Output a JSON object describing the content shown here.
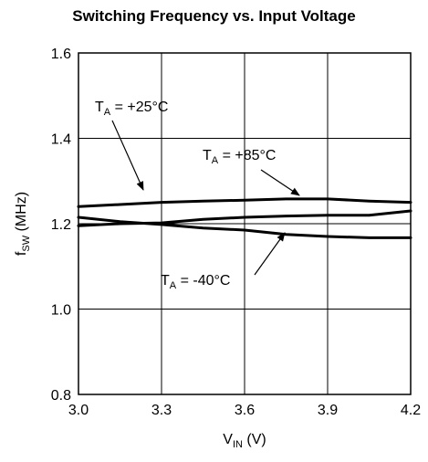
{
  "chart_data": {
    "type": "line",
    "title": "Switching Frequency vs. Input Voltage",
    "xlabel": {
      "main": "V",
      "sub": "IN",
      "unit": " (V)"
    },
    "ylabel": {
      "main": "f",
      "sub": "SW",
      "unit": " (MHz)"
    },
    "xlim": [
      3.0,
      4.2
    ],
    "ylim": [
      0.8,
      1.6
    ],
    "x_ticks": [
      "3.0",
      "3.3",
      "3.6",
      "3.9",
      "4.2"
    ],
    "y_ticks": [
      "0.8",
      "1.0",
      "1.2",
      "1.4",
      "1.6"
    ],
    "grid": true,
    "series": [
      {
        "name": "T_A = +25°C",
        "x": [
          3.0,
          3.15,
          3.3,
          3.45,
          3.6,
          3.75,
          3.9,
          4.05,
          4.2
        ],
        "y": [
          1.24,
          1.245,
          1.25,
          1.253,
          1.255,
          1.258,
          1.258,
          1.253,
          1.25
        ]
      },
      {
        "name": "T_A = +85°C",
        "x": [
          3.0,
          3.15,
          3.3,
          3.45,
          3.6,
          3.75,
          3.9,
          4.05,
          4.2
        ],
        "y": [
          1.195,
          1.2,
          1.202,
          1.21,
          1.215,
          1.218,
          1.22,
          1.22,
          1.23
        ]
      },
      {
        "name": "T_A = -40°C",
        "x": [
          3.0,
          3.15,
          3.3,
          3.45,
          3.6,
          3.75,
          3.9,
          4.05,
          4.2
        ],
        "y": [
          1.215,
          1.205,
          1.198,
          1.19,
          1.185,
          1.175,
          1.17,
          1.167,
          1.167
        ]
      }
    ],
    "annotations": [
      {
        "main": "T",
        "sub": "A",
        "rest": " = +25°C",
        "series": "T_A = +25°C"
      },
      {
        "main": "T",
        "sub": "A",
        "rest": " = +85°C",
        "series": "T_A = +85°C"
      },
      {
        "main": "T",
        "sub": "A",
        "rest": " = -40°C",
        "series": "T_A = -40°C"
      }
    ]
  }
}
